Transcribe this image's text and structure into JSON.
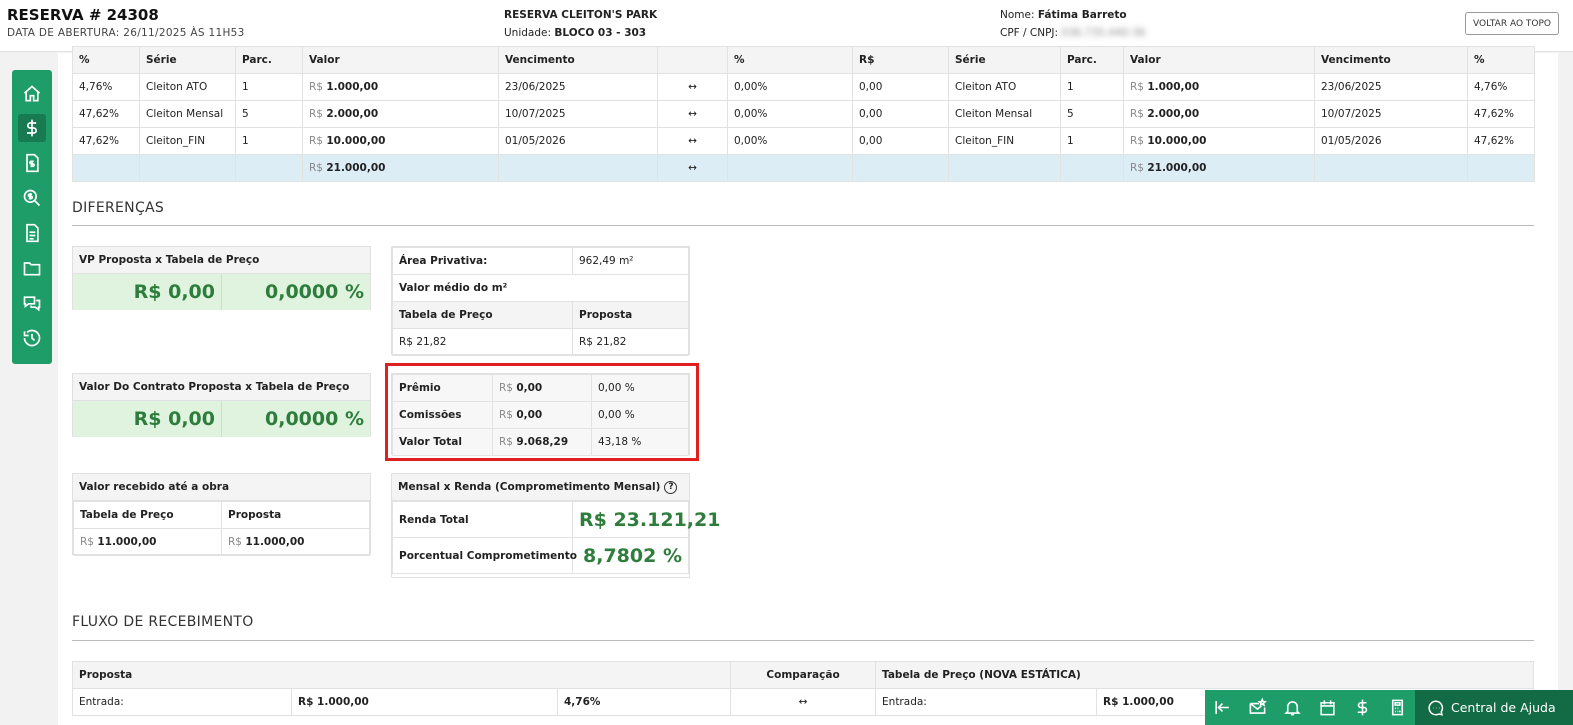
{
  "header": {
    "title": "RESERVA # 24308",
    "opening_date": "DATA DE ABERTURA: 26/11/2025 ÀS 11H53",
    "project": "RESERVA CLEITON'S PARK",
    "unit_label": "Unidade:",
    "unit_value": "BLOCO 03 - 303",
    "name_label": "Nome:",
    "name_value": "Fátima Barreto",
    "cpf_label": "CPF / CNPJ:",
    "cpf_value": "036.735.440-36",
    "back_to_top": "VOLTAR AO TOPO"
  },
  "parcelas": {
    "headers": [
      "%",
      "Série",
      "Parc.",
      "Valor",
      "Vencimento",
      "",
      "%",
      "R$",
      "Série",
      "Parc.",
      "Valor",
      "Vencimento",
      "%"
    ],
    "currency": "R$",
    "rows": [
      {
        "pct": "4,76%",
        "serie": "Cleiton ATO",
        "parc": "1",
        "valor": "1.000,00",
        "venc": "23/06/2025",
        "dpct": "0,00%",
        "drs": "0,00",
        "serie2": "Cleiton ATO",
        "parc2": "1",
        "valor2": "1.000,00",
        "venc2": "23/06/2025",
        "pct2": "4,76%"
      },
      {
        "pct": "47,62%",
        "serie": "Cleiton Mensal",
        "parc": "5",
        "valor": "2.000,00",
        "venc": "10/07/2025",
        "dpct": "0,00%",
        "drs": "0,00",
        "serie2": "Cleiton Mensal",
        "parc2": "5",
        "valor2": "2.000,00",
        "venc2": "10/07/2025",
        "pct2": "47,62%"
      },
      {
        "pct": "47,62%",
        "serie": "Cleiton_FIN",
        "parc": "1",
        "valor": "10.000,00",
        "venc": "01/05/2026",
        "dpct": "0,00%",
        "drs": "0,00",
        "serie2": "Cleiton_FIN",
        "parc2": "1",
        "valor2": "10.000,00",
        "venc2": "01/05/2026",
        "pct2": "47,62%"
      }
    ],
    "total_left": "21.000,00",
    "total_right": "21.000,00",
    "arrow": "↔"
  },
  "diferencas": {
    "title": "DIFERENÇAS",
    "vp": {
      "title": "VP Proposta x Tabela de Preço",
      "value": "R$ 0,00",
      "pct": "0,0000 %"
    },
    "contrato": {
      "title": "Valor Do Contrato Proposta x Tabela de Preço",
      "value": "R$ 0,00",
      "pct": "0,0000 %"
    },
    "recebido": {
      "title": "Valor recebido até a obra",
      "col1": "Tabela de Preço",
      "col2": "Proposta",
      "v1": "11.000,00",
      "v2": "11.000,00"
    },
    "area": {
      "label": "Área Privativa:",
      "value": "962,49 m²",
      "medio": "Valor médio do m²",
      "col1": "Tabela de Preço",
      "col2": "Proposta",
      "v1": "R$ 21,82",
      "v2": "R$ 21,82"
    },
    "premio": {
      "rows": [
        {
          "label": "Prêmio",
          "value": "0,00",
          "pct": "0,00 %"
        },
        {
          "label": "Comissões",
          "value": "0,00",
          "pct": "0,00 %"
        },
        {
          "label": "Valor Total",
          "value": "9.068,29",
          "pct": "43,18 %"
        }
      ]
    },
    "renda": {
      "title": "Mensal x Renda (Comprometimento Mensal)",
      "help": "?",
      "total_label": "Renda Total",
      "total_value": "R$ 23.121,21",
      "pct_label": "Porcentual Comprometimento",
      "pct_value": "8,7802 %"
    }
  },
  "fluxo": {
    "title": "FLUXO DE RECEBIMENTO",
    "col_proposta": "Proposta",
    "col_comparacao": "Comparação",
    "col_tabela": "Tabela de Preço (NOVA ESTÁTICA)",
    "entrada_label": "Entrada:",
    "entrada_value": "R$ 1.000,00",
    "entrada_pct": "4,76%",
    "entrada_value2": "R$ 1.000,00"
  },
  "help_button": "Central de Ajuda"
}
